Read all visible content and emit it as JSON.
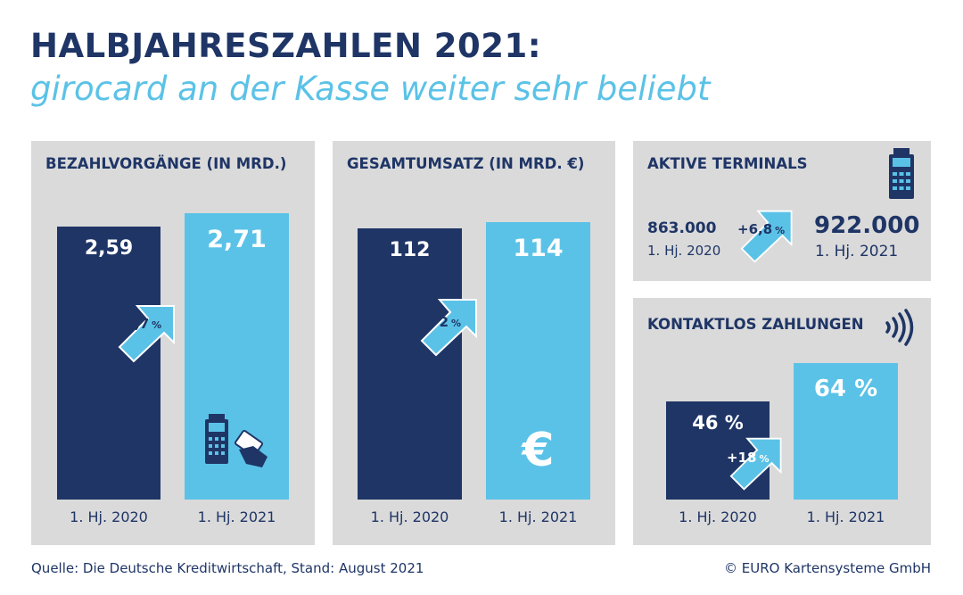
{
  "header": {
    "title": "HALBJAHRESZAHLEN 2021:",
    "subtitle": "girocard an der Kasse weiter sehr beliebt"
  },
  "colors": {
    "dark": "#1f3566",
    "light": "#5bc2e7",
    "panel": "#dadada"
  },
  "chart_data": [
    {
      "type": "bar",
      "title": "BEZAHLVORGÄNGE (IN MRD.)",
      "categories": [
        "1. Hj. 2020",
        "1. Hj. 2021"
      ],
      "values": [
        2.59,
        2.71
      ],
      "value_labels": [
        "2,59",
        "2,71"
      ],
      "change_label": "+4,7",
      "change_unit": "%",
      "icon": "payment-terminal-and-card-icon"
    },
    {
      "type": "bar",
      "title": "GESAMTUMSATZ (IN MRD. €)",
      "categories": [
        "1. Hj. 2020",
        "1. Hj. 2021"
      ],
      "values": [
        112,
        114
      ],
      "value_labels": [
        "112",
        "114"
      ],
      "change_label": "+2",
      "change_unit": "%",
      "icon": "euro-icon",
      "icon_text": "€"
    },
    {
      "type": "table",
      "title": "AKTIVE TERMINALS",
      "categories": [
        "1. Hj. 2020",
        "1. Hj. 2021"
      ],
      "values": [
        863000,
        922000
      ],
      "value_labels": [
        "863.000",
        "922.000"
      ],
      "change_label": "+6,8",
      "change_unit": "%",
      "icon": "payment-terminal-icon"
    },
    {
      "type": "bar",
      "title": "KONTAKTLOS ZAHLUNGEN",
      "categories": [
        "1. Hj. 2020",
        "1. Hj. 2021"
      ],
      "values": [
        46,
        64
      ],
      "value_labels": [
        "46 %",
        "64 %"
      ],
      "change_label": "+18",
      "change_unit": "%",
      "icon": "contactless-icon"
    }
  ],
  "footer": {
    "source": "Quelle: Die Deutsche Kreditwirtschaft, Stand: August 2021",
    "copyright": "© EURO Kartensysteme GmbH"
  }
}
